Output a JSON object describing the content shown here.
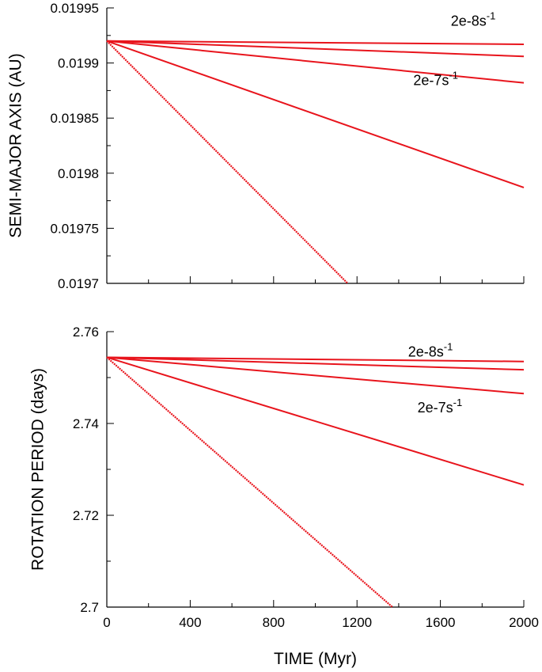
{
  "chart_data": [
    {
      "type": "line",
      "panel": "top",
      "ylabel": "SEMI-MAJOR AXIS (AU)",
      "xlabel": "",
      "xlim": [
        0,
        2000
      ],
      "ylim": [
        0.0197,
        0.01995
      ],
      "y_ticks": [
        0.0197,
        0.01975,
        0.0198,
        0.01985,
        0.0199,
        0.01995
      ],
      "y_tick_labels": [
        "0.0197",
        "0.01975",
        "0.0198",
        "0.01985",
        "0.0199",
        "0.01995"
      ],
      "x_ticks": [
        0,
        400,
        800,
        1200,
        1600,
        2000
      ],
      "x_tick_labels": [],
      "grid": false,
      "color": "#e8141c",
      "annotations": [
        {
          "text": "2e-8s",
          "sup": "-1",
          "x": 1650,
          "y": 0.019934
        },
        {
          "text": "2e-7s",
          "sup": "-1",
          "x": 1470,
          "y": 0.01988
        }
      ],
      "series": [
        {
          "x": [
            0,
            2000
          ],
          "y": [
            0.01992,
            0.019917
          ],
          "style": "solid"
        },
        {
          "x": [
            0,
            2000
          ],
          "y": [
            0.01992,
            0.019906
          ],
          "style": "solid"
        },
        {
          "x": [
            0,
            2000
          ],
          "y": [
            0.01992,
            0.019882
          ],
          "style": "solid"
        },
        {
          "x": [
            0,
            2000
          ],
          "y": [
            0.01992,
            0.019787
          ],
          "style": "solid"
        },
        {
          "x": [
            0,
            1155
          ],
          "y": [
            0.01992,
            0.0197
          ],
          "style": "dotted"
        }
      ]
    },
    {
      "type": "line",
      "panel": "bottom",
      "ylabel": "ROTATION PERIOD (days)",
      "xlabel": "TIME (Myr)",
      "xlim": [
        0,
        2000
      ],
      "ylim": [
        2.7,
        2.76
      ],
      "y_ticks": [
        2.7,
        2.72,
        2.74,
        2.76
      ],
      "y_tick_labels": [
        "2.7",
        "2.72",
        "2.74",
        "2.76"
      ],
      "x_ticks": [
        0,
        400,
        800,
        1200,
        1600,
        2000
      ],
      "x_tick_labels": [
        "0",
        "400",
        "800",
        "1200",
        "1600",
        "2000"
      ],
      "grid": false,
      "color": "#e8141c",
      "annotations": [
        {
          "text": "2e-8s",
          "sup": "-1",
          "x": 1445,
          "y": 2.7546
        },
        {
          "text": "2e-7s",
          "sup": "-1",
          "x": 1490,
          "y": 2.7424
        }
      ],
      "series": [
        {
          "x": [
            0,
            2000
          ],
          "y": [
            2.7544,
            2.7535
          ],
          "style": "solid"
        },
        {
          "x": [
            0,
            2000
          ],
          "y": [
            2.7544,
            2.7517
          ],
          "style": "solid"
        },
        {
          "x": [
            0,
            2000
          ],
          "y": [
            2.7544,
            2.7465
          ],
          "style": "solid"
        },
        {
          "x": [
            0,
            2000
          ],
          "y": [
            2.7544,
            2.7266
          ],
          "style": "solid"
        },
        {
          "x": [
            0,
            1370
          ],
          "y": [
            2.7544,
            2.7
          ],
          "style": "dotted"
        }
      ]
    }
  ]
}
